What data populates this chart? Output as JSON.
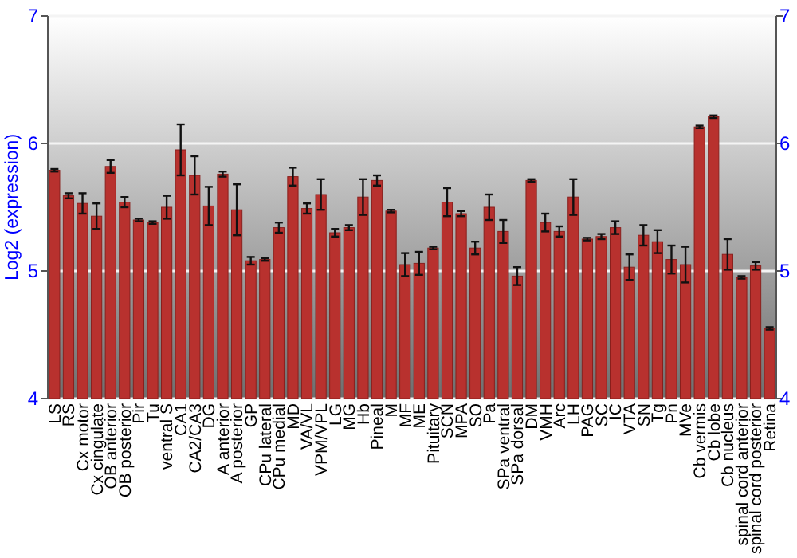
{
  "chart_data": {
    "type": "bar",
    "ylabel": "Log2 (expression)",
    "categories": [
      "LS",
      "RS",
      "Cx motor",
      "Cx cingulate",
      "OB anterior",
      "OB posterior",
      "Pir",
      "Tu",
      "ventral S",
      "CA1",
      "CA2/CA3",
      "DG",
      "A anterior",
      "A posterior",
      "GP",
      "CPu lateral",
      "CPu medial",
      "MD",
      "VA/VL",
      "VPM/VPL",
      "LG",
      "MG",
      "Hb",
      "Pineal",
      "M",
      "MF",
      "ME",
      "Pituitary",
      "SCN",
      "MPA",
      "SO",
      "Pa",
      "SPa ventral",
      "SPa dorsal",
      "DM",
      "VMH",
      "Arc",
      "LH",
      "PAG",
      "SC",
      "IC",
      "VTA",
      "SN",
      "Tg",
      "Pn",
      "MVe",
      "Cb vermis",
      "Cb lobe",
      "Cb nucleus",
      "spinal cord anterior",
      "spinal cord posterior",
      "Retina"
    ],
    "values": [
      5.79,
      5.59,
      5.53,
      5.43,
      5.82,
      5.54,
      5.4,
      5.38,
      5.5,
      5.95,
      5.75,
      5.51,
      5.76,
      5.48,
      5.08,
      5.09,
      5.34,
      5.74,
      5.49,
      5.6,
      5.3,
      5.34,
      5.58,
      5.71,
      5.47,
      5.05,
      5.06,
      5.18,
      5.54,
      5.45,
      5.18,
      5.5,
      5.31,
      4.96,
      5.71,
      5.38,
      5.31,
      5.58,
      5.25,
      5.27,
      5.34,
      5.03,
      5.28,
      5.23,
      5.09,
      5.05,
      6.13,
      6.21,
      5.13,
      4.95,
      5.04,
      4.55
    ],
    "errors": [
      0.01,
      0.02,
      0.08,
      0.1,
      0.05,
      0.04,
      0.01,
      0.01,
      0.09,
      0.2,
      0.15,
      0.15,
      0.02,
      0.2,
      0.03,
      0.01,
      0.04,
      0.07,
      0.04,
      0.12,
      0.03,
      0.02,
      0.14,
      0.04,
      0.01,
      0.09,
      0.09,
      0.01,
      0.11,
      0.02,
      0.05,
      0.1,
      0.09,
      0.07,
      0.01,
      0.07,
      0.04,
      0.14,
      0.01,
      0.02,
      0.05,
      0.1,
      0.08,
      0.09,
      0.11,
      0.14,
      0.01,
      0.01,
      0.12,
      0.01,
      0.03,
      0.01
    ],
    "color": "#b8312e",
    "ylim": [
      4,
      7
    ],
    "yticks": [
      4,
      5,
      6,
      7
    ],
    "y2lim": [
      4,
      7
    ],
    "y2ticks": [
      4,
      5,
      6,
      7
    ],
    "grid": "y"
  }
}
